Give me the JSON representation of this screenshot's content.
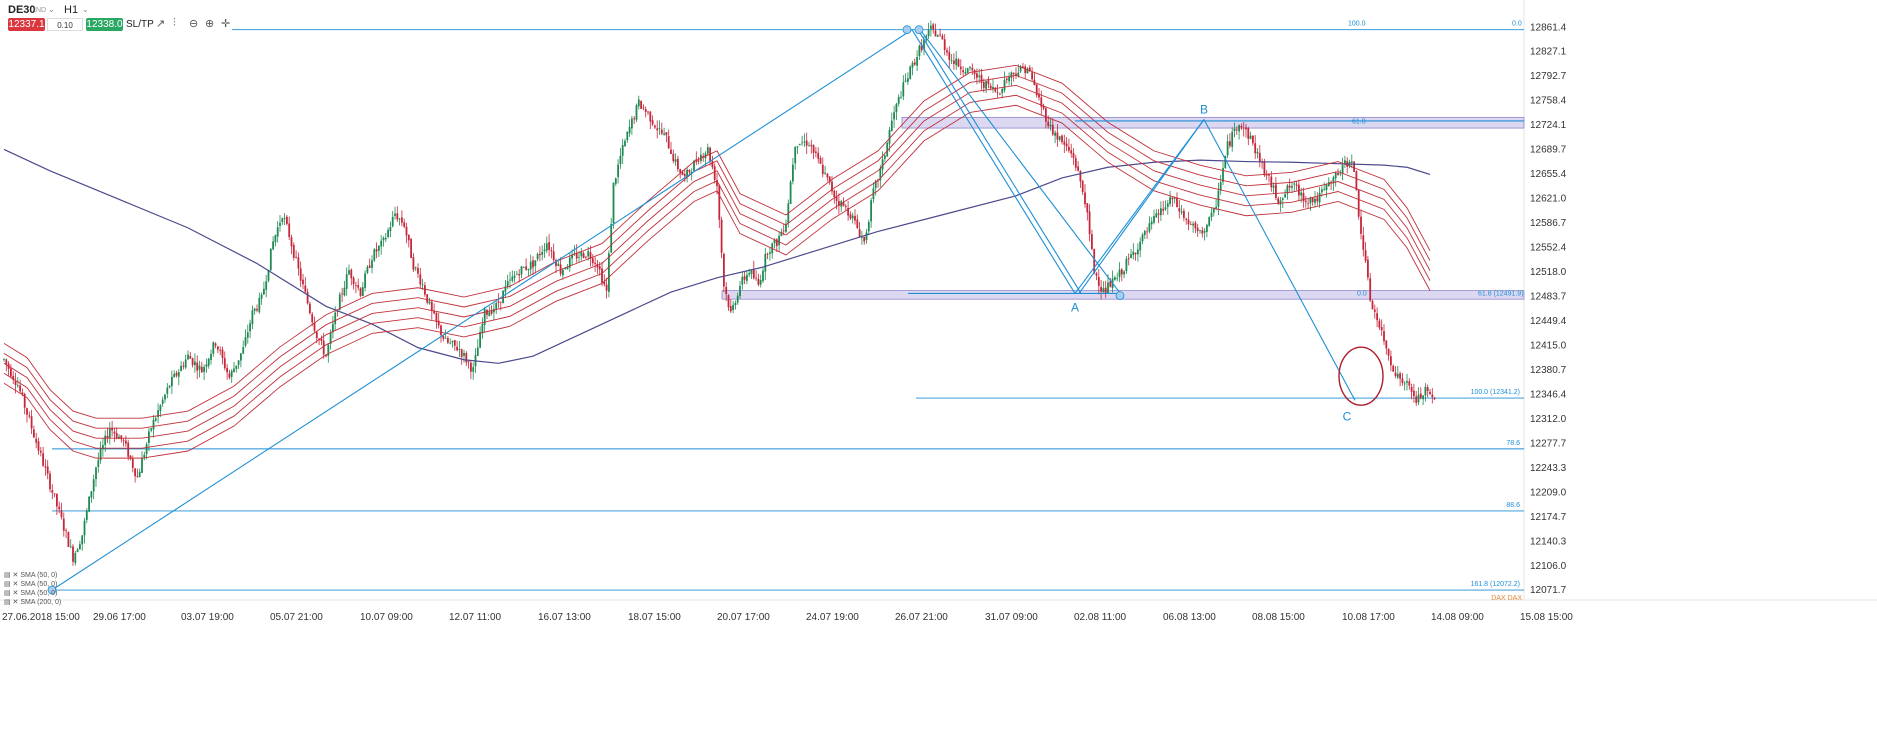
{
  "toolbar": {
    "symbol": "DE30",
    "symbol_sub": "IND",
    "timeframe": "H1",
    "bid": "12337.1",
    "lot": "0.10",
    "ask": "12338.0",
    "sltp": "SL/TP"
  },
  "colors": {
    "background": "#ffffff",
    "bull_candle": "#1e8a52",
    "bear_candle": "#c6263a",
    "envelope": "#c0303a",
    "sma_long": "#4b4a8c",
    "drawing": "#1d8fd6",
    "zone_fill": "#dcd8f2",
    "zone_border": "#8e87c9",
    "circle": "#b01c28",
    "fib_text": "#1d8fd6"
  },
  "chart_data": {
    "type": "candlestick",
    "ylim": [
      12058,
      12880
    ],
    "y_ticks": [
      "12861.4",
      "12827.1",
      "12792.7",
      "12758.4",
      "12724.1",
      "12689.7",
      "12655.4",
      "12621.0",
      "12586.7",
      "12552.4",
      "12518.0",
      "12483.7",
      "12449.4",
      "12415.0",
      "12380.7",
      "12346.4",
      "12312.0",
      "12277.7",
      "12243.3",
      "12209.0",
      "12174.7",
      "12140.3",
      "12106.0",
      "12071.7"
    ],
    "x_ticks": [
      "27.06.2018 15:00",
      "29.06 17:00",
      "03.07 19:00",
      "05.07 21:00",
      "10.07 09:00",
      "12.07 11:00",
      "16.07 13:00",
      "18.07 15:00",
      "20.07 17:00",
      "24.07 19:00",
      "26.07 21:00",
      "31.07 09:00",
      "02.08 11:00",
      "06.08 13:00",
      "08.08 15:00",
      "10.08 17:00",
      "14.08 09:00",
      "15.08 15:00"
    ],
    "price_path": [
      [
        0,
        12395
      ],
      [
        6,
        12360
      ],
      [
        12,
        12300
      ],
      [
        20,
        12220
      ],
      [
        26,
        12160
      ],
      [
        30,
        12118
      ],
      [
        34,
        12150
      ],
      [
        40,
        12245
      ],
      [
        46,
        12300
      ],
      [
        52,
        12280
      ],
      [
        58,
        12230
      ],
      [
        64,
        12300
      ],
      [
        72,
        12360
      ],
      [
        80,
        12400
      ],
      [
        86,
        12380
      ],
      [
        92,
        12420
      ],
      [
        98,
        12370
      ],
      [
        104,
        12410
      ],
      [
        108,
        12460
      ],
      [
        112,
        12480
      ],
      [
        117,
        12560
      ],
      [
        121,
        12600
      ],
      [
        124,
        12570
      ],
      [
        128,
        12520
      ],
      [
        132,
        12475
      ],
      [
        136,
        12430
      ],
      [
        140,
        12400
      ],
      [
        145,
        12470
      ],
      [
        150,
        12520
      ],
      [
        155,
        12490
      ],
      [
        160,
        12540
      ],
      [
        165,
        12560
      ],
      [
        170,
        12600
      ],
      [
        174,
        12585
      ],
      [
        178,
        12528
      ],
      [
        182,
        12500
      ],
      [
        186,
        12460
      ],
      [
        192,
        12420
      ],
      [
        198,
        12410
      ],
      [
        204,
        12380
      ],
      [
        209,
        12460
      ],
      [
        214,
        12470
      ],
      [
        219,
        12500
      ],
      [
        224,
        12520
      ],
      [
        230,
        12530
      ],
      [
        236,
        12560
      ],
      [
        242,
        12520
      ],
      [
        248,
        12540
      ],
      [
        254,
        12545
      ],
      [
        258,
        12530
      ],
      [
        262,
        12490
      ],
      [
        265,
        12640
      ],
      [
        268,
        12680
      ],
      [
        272,
        12720
      ],
      [
        276,
        12755
      ],
      [
        280,
        12740
      ],
      [
        284,
        12720
      ],
      [
        288,
        12705
      ],
      [
        292,
        12670
      ],
      [
        296,
        12650
      ],
      [
        302,
        12680
      ],
      [
        306,
        12690
      ],
      [
        310,
        12640
      ],
      [
        313,
        12500
      ],
      [
        316,
        12460
      ],
      [
        320,
        12500
      ],
      [
        324,
        12520
      ],
      [
        328,
        12500
      ],
      [
        332,
        12550
      ],
      [
        336,
        12560
      ],
      [
        340,
        12590
      ],
      [
        344,
        12700
      ],
      [
        350,
        12700
      ],
      [
        356,
        12660
      ],
      [
        362,
        12620
      ],
      [
        368,
        12600
      ],
      [
        374,
        12560
      ],
      [
        378,
        12630
      ],
      [
        382,
        12670
      ],
      [
        386,
        12730
      ],
      [
        390,
        12770
      ],
      [
        394,
        12800
      ],
      [
        398,
        12830
      ],
      [
        403,
        12858
      ],
      [
        407,
        12848
      ],
      [
        412,
        12815
      ],
      [
        417,
        12805
      ],
      [
        422,
        12795
      ],
      [
        427,
        12780
      ],
      [
        432,
        12770
      ],
      [
        436,
        12790
      ],
      [
        440,
        12800
      ],
      [
        445,
        12805
      ],
      [
        450,
        12760
      ],
      [
        455,
        12720
      ],
      [
        460,
        12700
      ],
      [
        465,
        12680
      ],
      [
        470,
        12620
      ],
      [
        474,
        12520
      ],
      [
        478,
        12490
      ],
      [
        484,
        12510
      ],
      [
        490,
        12540
      ],
      [
        496,
        12570
      ],
      [
        502,
        12600
      ],
      [
        508,
        12620
      ],
      [
        514,
        12590
      ],
      [
        520,
        12570
      ],
      [
        526,
        12600
      ],
      [
        532,
        12695
      ],
      [
        537,
        12730
      ],
      [
        542,
        12705
      ],
      [
        548,
        12660
      ],
      [
        554,
        12620
      ],
      [
        560,
        12640
      ],
      [
        566,
        12620
      ],
      [
        571,
        12620
      ],
      [
        576,
        12640
      ],
      [
        581,
        12660
      ],
      [
        586,
        12680
      ],
      [
        590,
        12575
      ],
      [
        594,
        12480
      ],
      [
        598,
        12440
      ],
      [
        602,
        12400
      ],
      [
        606,
        12370
      ],
      [
        610,
        12360
      ],
      [
        614,
        12338
      ],
      [
        618,
        12350
      ],
      [
        622,
        12337
      ]
    ],
    "series": [
      {
        "type": "sma",
        "color": "#4b4a8c",
        "points": [
          [
            0,
            12690
          ],
          [
            20,
            12660
          ],
          [
            50,
            12620
          ],
          [
            80,
            12580
          ],
          [
            110,
            12530
          ],
          [
            140,
            12470
          ],
          [
            160,
            12445
          ],
          [
            180,
            12412
          ],
          [
            200,
            12395
          ],
          [
            215,
            12390
          ],
          [
            230,
            12400
          ],
          [
            250,
            12430
          ],
          [
            270,
            12460
          ],
          [
            290,
            12490
          ],
          [
            310,
            12510
          ],
          [
            330,
            12525
          ],
          [
            350,
            12545
          ],
          [
            380,
            12575
          ],
          [
            410,
            12600
          ],
          [
            440,
            12625
          ],
          [
            460,
            12650
          ],
          [
            480,
            12665
          ],
          [
            500,
            12672
          ],
          [
            520,
            12675
          ],
          [
            540,
            12673
          ],
          [
            560,
            12672
          ],
          [
            580,
            12670
          ],
          [
            600,
            12668
          ],
          [
            610,
            12665
          ],
          [
            620,
            12655
          ]
        ]
      },
      {
        "type": "envelope",
        "color": "#c0303a",
        "points": [
          [
            0,
            12390
          ],
          [
            10,
            12370
          ],
          [
            20,
            12325
          ],
          [
            30,
            12295
          ],
          [
            40,
            12285
          ],
          [
            60,
            12285
          ],
          [
            80,
            12295
          ],
          [
            100,
            12330
          ],
          [
            120,
            12385
          ],
          [
            140,
            12430
          ],
          [
            160,
            12460
          ],
          [
            180,
            12468
          ],
          [
            200,
            12455
          ],
          [
            220,
            12470
          ],
          [
            240,
            12505
          ],
          [
            260,
            12530
          ],
          [
            280,
            12590
          ],
          [
            300,
            12645
          ],
          [
            310,
            12660
          ],
          [
            320,
            12600
          ],
          [
            340,
            12570
          ],
          [
            360,
            12620
          ],
          [
            380,
            12660
          ],
          [
            400,
            12730
          ],
          [
            420,
            12770
          ],
          [
            440,
            12780
          ],
          [
            460,
            12755
          ],
          [
            480,
            12700
          ],
          [
            500,
            12660
          ],
          [
            520,
            12640
          ],
          [
            540,
            12625
          ],
          [
            560,
            12630
          ],
          [
            580,
            12645
          ],
          [
            600,
            12620
          ],
          [
            610,
            12580
          ],
          [
            620,
            12520
          ]
        ]
      }
    ],
    "levels": [
      {
        "price": 12858,
        "label_right": "0.0",
        "label_left": "100.0"
      },
      {
        "price": 12341.2,
        "label": "100.0 (12341.2)"
      },
      {
        "price": 12270,
        "label": "78.6"
      },
      {
        "price": 12183,
        "label": "88.6"
      },
      {
        "price": 12072,
        "label": "161.8 (12072.2)"
      }
    ],
    "zones": [
      {
        "top": 12735,
        "bottom": 12720,
        "label": "61.8"
      },
      {
        "top": 12492,
        "bottom": 12480,
        "label_center": "0.0",
        "label_right": "61.8 (12491.9)"
      }
    ],
    "pattern_points": [
      {
        "name": "A",
        "x": 494,
        "price": 12488
      },
      {
        "name": "B",
        "x": 548,
        "price": 12732
      },
      {
        "name": "C",
        "x": 614,
        "price": 12338
      }
    ],
    "extra_label": "DAX DAX",
    "sma_legend": [
      "SMA (50, 0)",
      "SMA (50, 0)",
      "SMA (50, 0)",
      "SMA (200, 0)"
    ]
  }
}
